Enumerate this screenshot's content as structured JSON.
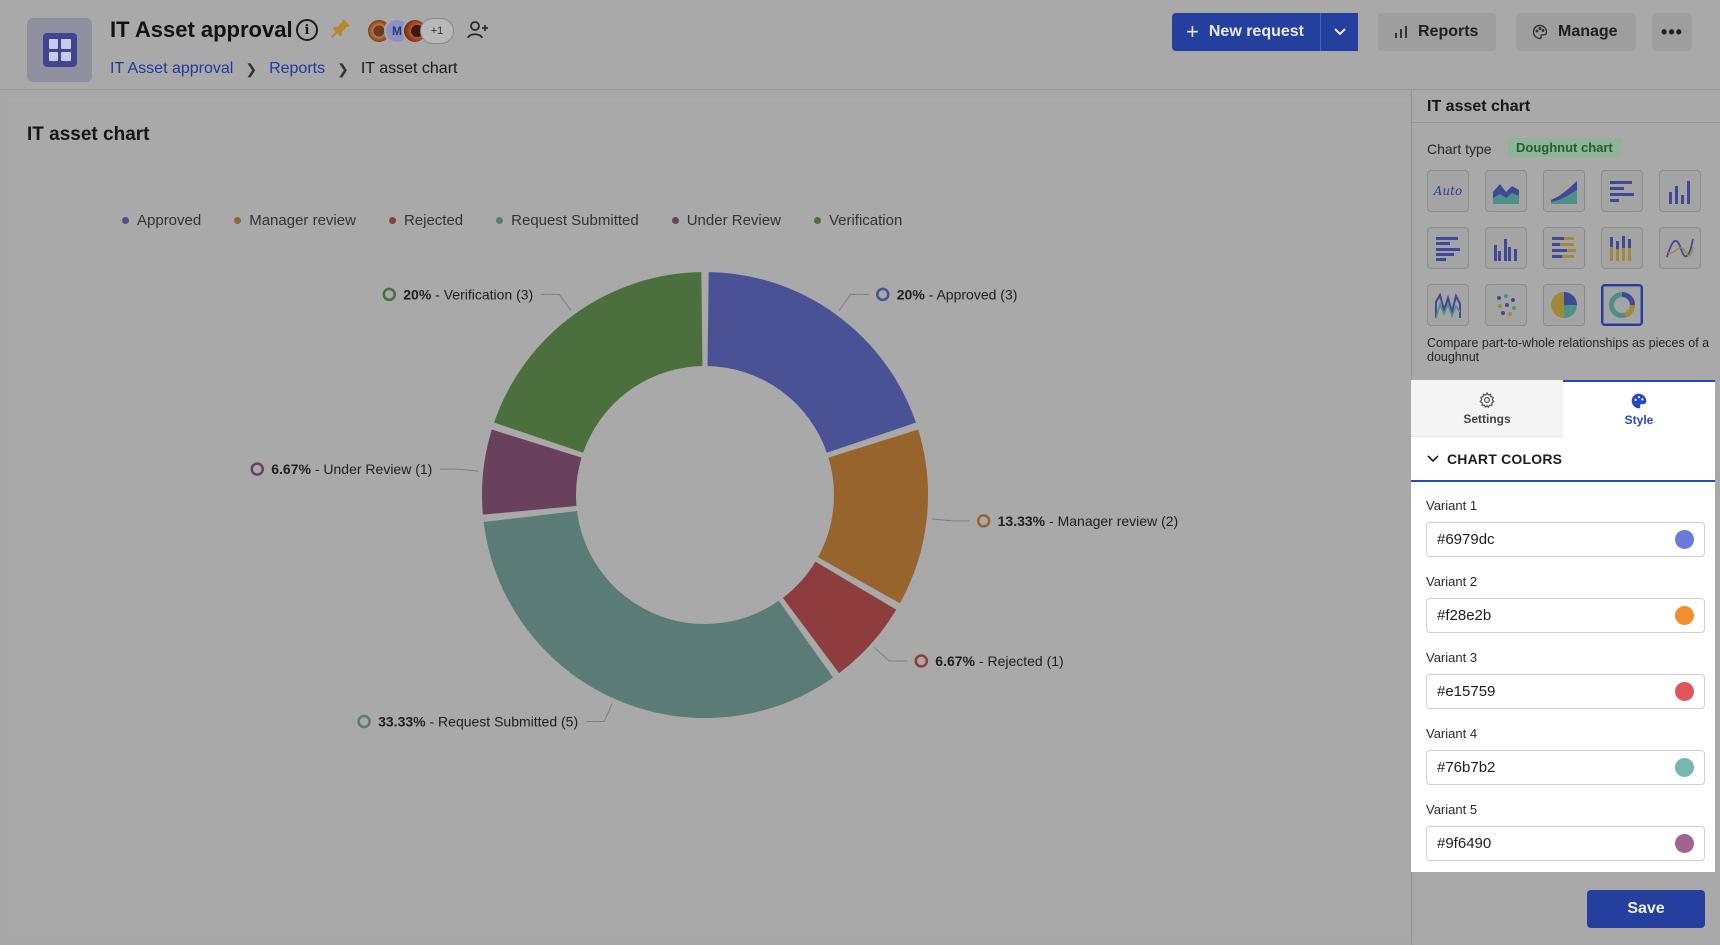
{
  "header": {
    "title": "IT Asset approval",
    "avatars": [
      "",
      "M",
      "",
      "+1"
    ],
    "breadcrumb": [
      "IT Asset approval",
      "Reports",
      "IT asset chart"
    ],
    "new_request_label": "New request",
    "reports_label": "Reports",
    "manage_label": "Manage",
    "more_label": "•••"
  },
  "main": {
    "title": "IT asset chart"
  },
  "chart_data": {
    "type": "pie",
    "variant": "doughnut",
    "title": "IT asset chart",
    "legend": [
      "Approved",
      "Manager review",
      "Rejected",
      "Request Submitted",
      "Under Review",
      "Verification"
    ],
    "legend_position": "top",
    "slices": [
      {
        "name": "Approved",
        "count": 3,
        "percent": "20%",
        "color": "#4a5194"
      },
      {
        "name": "Manager review",
        "count": 2,
        "percent": "13.33%",
        "color": "#97642d"
      },
      {
        "name": "Rejected",
        "count": 1,
        "percent": "6.67%",
        "color": "#8d3d3d"
      },
      {
        "name": "Request Submitted",
        "count": 5,
        "percent": "33.33%",
        "color": "#5b7b77"
      },
      {
        "name": "Under Review",
        "count": 1,
        "percent": "6.67%",
        "color": "#6a415d"
      },
      {
        "name": "Verification",
        "count": 3,
        "percent": "20%",
        "color": "#4b703e"
      }
    ]
  },
  "side": {
    "title": "IT asset chart",
    "chart_type_label": "Chart type",
    "chart_type_value": "Doughnut chart",
    "chart_type_icons": [
      "auto",
      "area",
      "stacked-area",
      "horizontal-bar",
      "vertical-bar",
      "grouped-horizontal-bar",
      "grouped-vertical-bar",
      "stacked-horizontal-bar",
      "stacked-vertical-bar",
      "line",
      "multi-line",
      "scatter",
      "pie",
      "doughnut"
    ],
    "auto_label": "Auto",
    "description": "Compare part-to-whole relationships as pieces of a doughnut",
    "tabs": [
      "Settings",
      "Style"
    ],
    "section_title": "CHART COLORS",
    "variants": [
      {
        "label": "Variant 1",
        "value": "#6979dc"
      },
      {
        "label": "Variant 2",
        "value": "#f28e2b"
      },
      {
        "label": "Variant 3",
        "value": "#e15759"
      },
      {
        "label": "Variant 4",
        "value": "#76b7b2"
      },
      {
        "label": "Variant 5",
        "value": "#9f6490"
      }
    ],
    "save_label": "Save"
  }
}
